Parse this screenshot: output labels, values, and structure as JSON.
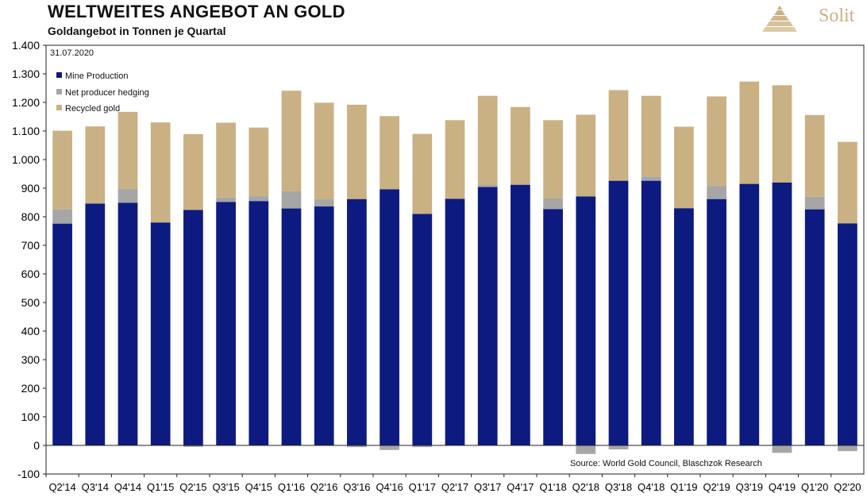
{
  "header": {
    "title": "WELTWEITES ANGEBOT AN GOLD",
    "subtitle": "Goldangebot in Tonnen je Quartal",
    "brand": "Solit"
  },
  "chart_data": {
    "type": "bar",
    "stacked": true,
    "title": "WELTWEITES ANGEBOT AN GOLD",
    "subtitle": "Goldangebot in Tonnen je Quartal",
    "date_label": "31.07.2020",
    "source": "Source: World Gold Council, Blaschzok Research",
    "xlabel": "",
    "ylabel": "",
    "ylim": [
      -100,
      1400
    ],
    "yticks": [
      -100,
      0,
      100,
      200,
      300,
      400,
      500,
      600,
      700,
      800,
      900,
      1000,
      1100,
      1200,
      1300,
      1400
    ],
    "ytick_labels": [
      "-100",
      "0",
      "100",
      "200",
      "300",
      "400",
      "500",
      "600",
      "700",
      "800",
      "900",
      "1.000",
      "1.100",
      "1.200",
      "1.300",
      "1.400"
    ],
    "legend_position": "top-left",
    "categories": [
      "Q2'14",
      "Q3'14",
      "Q4'14",
      "Q1'15",
      "Q2'15",
      "Q3'15",
      "Q4'15",
      "Q1'16",
      "Q2'16",
      "Q3'16",
      "Q4'16",
      "Q1'17",
      "Q2'17",
      "Q3'17",
      "Q4'17",
      "Q1'18",
      "Q2'18",
      "Q3'18",
      "Q4'18",
      "Q1'19",
      "Q2'19",
      "Q3'19",
      "Q4'19",
      "Q1'20",
      "Q2'20"
    ],
    "series": [
      {
        "name": "Mine Production",
        "color": "#0d1a80",
        "values": [
          776,
          846,
          849,
          780,
          824,
          852,
          855,
          829,
          836,
          862,
          896,
          810,
          863,
          904,
          912,
          827,
          871,
          926,
          926,
          830,
          862,
          915,
          920,
          826,
          777
        ]
      },
      {
        "name": "Net producer hedging",
        "color": "#a6a6a6",
        "values": [
          50,
          0,
          48,
          0,
          -5,
          15,
          17,
          60,
          25,
          -6,
          -16,
          -6,
          0,
          7,
          0,
          37,
          -30,
          -14,
          15,
          0,
          46,
          0,
          -26,
          44,
          -20
        ]
      },
      {
        "name": "Recycled gold",
        "color": "#c9b184",
        "values": [
          275,
          270,
          270,
          350,
          265,
          262,
          240,
          352,
          338,
          330,
          256,
          280,
          275,
          312,
          272,
          274,
          286,
          317,
          282,
          285,
          313,
          358,
          340,
          286,
          285
        ]
      }
    ]
  }
}
